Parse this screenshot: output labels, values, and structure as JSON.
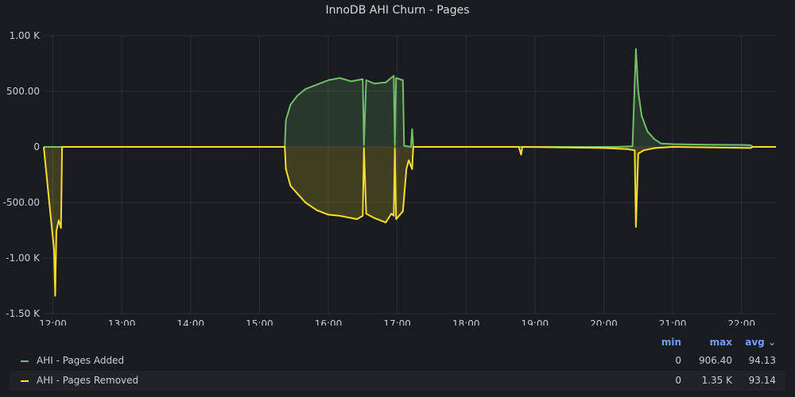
{
  "chart_data": {
    "type": "area",
    "title": "InnoDB AHI Churn - Pages",
    "x_ticks": [
      "12:00",
      "13:00",
      "14:00",
      "15:00",
      "16:00",
      "17:00",
      "18:00",
      "19:00",
      "20:00",
      "21:00",
      "22:00"
    ],
    "y_ticks": [
      "1.00 K",
      "500.00",
      "0",
      "-500.00",
      "-1.00 K",
      "-1.50 K"
    ],
    "y_tick_values": [
      1000,
      500,
      0,
      -500,
      -1000,
      -1500
    ],
    "ylim": [
      -1500,
      1000
    ],
    "xlim": [
      "11:52",
      "22:30"
    ],
    "grid": true,
    "series": [
      {
        "name": "AHI - Pages Added",
        "color": "#73bf69",
        "points": [
          [
            "11:52",
            0
          ],
          [
            "15:22",
            0
          ],
          [
            "15:23",
            240
          ],
          [
            "15:27",
            380
          ],
          [
            "15:33",
            460
          ],
          [
            "15:40",
            520
          ],
          [
            "15:50",
            560
          ],
          [
            "16:00",
            600
          ],
          [
            "16:10",
            620
          ],
          [
            "16:20",
            590
          ],
          [
            "16:30",
            610
          ],
          [
            "16:31",
            15
          ],
          [
            "16:33",
            600
          ],
          [
            "16:40",
            570
          ],
          [
            "16:50",
            580
          ],
          [
            "16:57",
            640
          ],
          [
            "16:58",
            10
          ],
          [
            "16:59",
            620
          ],
          [
            "17:05",
            600
          ],
          [
            "17:06",
            10
          ],
          [
            "17:12",
            0
          ],
          [
            "17:13",
            160
          ],
          [
            "17:14",
            0
          ],
          [
            "20:00",
            0
          ],
          [
            "20:10",
            0
          ],
          [
            "20:25",
            5
          ],
          [
            "20:28",
            880
          ],
          [
            "20:30",
            500
          ],
          [
            "20:33",
            280
          ],
          [
            "20:38",
            140
          ],
          [
            "20:44",
            70
          ],
          [
            "20:50",
            30
          ],
          [
            "21:00",
            25
          ],
          [
            "21:30",
            20
          ],
          [
            "22:00",
            18
          ],
          [
            "22:08",
            15
          ],
          [
            "22:10",
            0
          ],
          [
            "22:30",
            0
          ]
        ]
      },
      {
        "name": "AHI - Pages Removed",
        "color": "#fade2a",
        "points": [
          [
            "11:52",
            0
          ],
          [
            "12:01",
            -930
          ],
          [
            "12:02",
            -1340
          ],
          [
            "12:03",
            -760
          ],
          [
            "12:05",
            -660
          ],
          [
            "12:07",
            -730
          ],
          [
            "12:08",
            0
          ],
          [
            "15:22",
            0
          ],
          [
            "15:23",
            -200
          ],
          [
            "15:27",
            -350
          ],
          [
            "15:33",
            -420
          ],
          [
            "15:40",
            -500
          ],
          [
            "15:50",
            -570
          ],
          [
            "16:00",
            -610
          ],
          [
            "16:10",
            -620
          ],
          [
            "16:20",
            -640
          ],
          [
            "16:25",
            -650
          ],
          [
            "16:30",
            -620
          ],
          [
            "16:31",
            -10
          ],
          [
            "16:33",
            -600
          ],
          [
            "16:40",
            -640
          ],
          [
            "16:50",
            -680
          ],
          [
            "16:55",
            -600
          ],
          [
            "16:57",
            -620
          ],
          [
            "16:58",
            -10
          ],
          [
            "16:59",
            -650
          ],
          [
            "17:05",
            -580
          ],
          [
            "17:08",
            -200
          ],
          [
            "17:10",
            -120
          ],
          [
            "17:13",
            -200
          ],
          [
            "17:14",
            0
          ],
          [
            "18:46",
            0
          ],
          [
            "18:48",
            -70
          ],
          [
            "18:49",
            0
          ],
          [
            "20:00",
            -10
          ],
          [
            "20:20",
            -20
          ],
          [
            "20:27",
            -30
          ],
          [
            "20:28",
            -720
          ],
          [
            "20:30",
            -60
          ],
          [
            "20:35",
            -30
          ],
          [
            "20:45",
            -10
          ],
          [
            "21:00",
            0
          ],
          [
            "22:08",
            -10
          ],
          [
            "22:10",
            0
          ],
          [
            "22:30",
            0
          ]
        ]
      }
    ]
  },
  "legend": {
    "headers": {
      "min": "min",
      "max": "max",
      "avg": "avg ⌄"
    },
    "rows": [
      {
        "name": "AHI - Pages Added",
        "min": "0",
        "max": "906.40",
        "avg": "94.13"
      },
      {
        "name": "AHI - Pages Removed",
        "min": "0",
        "max": "1.35 K",
        "avg": "93.14"
      }
    ]
  }
}
